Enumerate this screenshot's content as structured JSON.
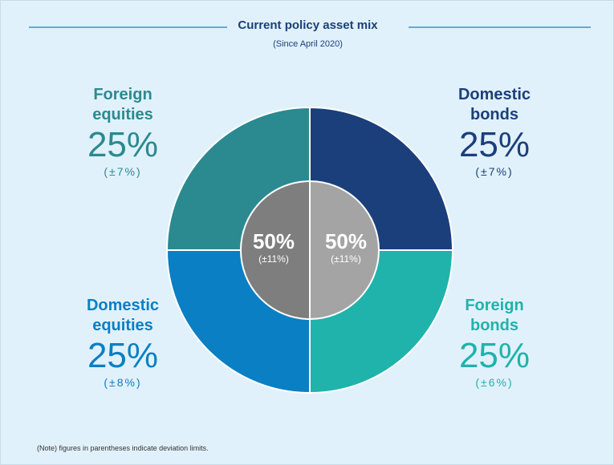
{
  "chart_data": {
    "type": "pie",
    "title": "Current policy asset mix",
    "subtitle": "(Since April 2020)",
    "categories": [
      "Domestic bonds",
      "Foreign bonds",
      "Domestic equities",
      "Foreign equities"
    ],
    "values": [
      25,
      25,
      25,
      25
    ],
    "value_labels": [
      "25%",
      "25%",
      "25%",
      "25%"
    ],
    "deviations": [
      "(±7%)",
      "(±6%)",
      "(±8%)",
      "(±7%)"
    ],
    "colors": [
      "#1b3f7b",
      "#1fb3ac",
      "#0a7fc4",
      "#2a8a90"
    ],
    "inner": {
      "values": [
        50,
        50
      ],
      "value_labels": [
        "50%",
        "50%"
      ],
      "deviations": [
        "(±11%)",
        "(±11%)"
      ],
      "colors": [
        "#a4a4a4",
        "#7e7e7e"
      ]
    },
    "note": "(Note) figures in parentheses indicate deviation limits."
  }
}
